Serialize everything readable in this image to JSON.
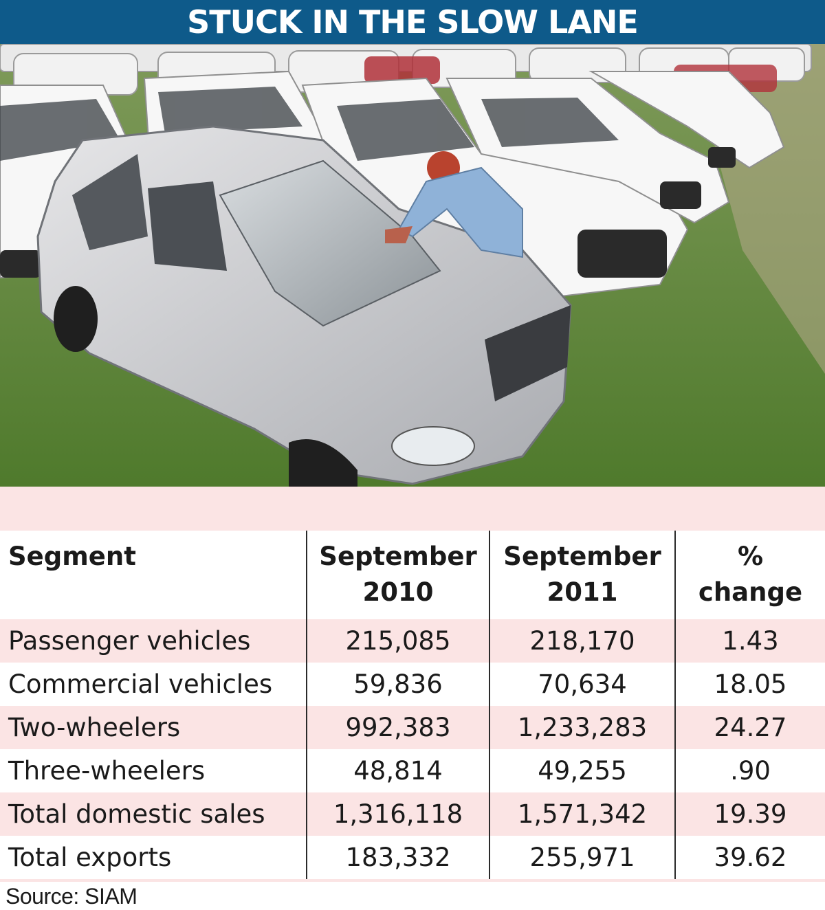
{
  "title": "STUCK IN THE SLOW LANE",
  "photo": {
    "icon": "parked-cars-photo"
  },
  "table": {
    "headers": [
      {
        "line1": "Segment",
        "line2": ""
      },
      {
        "line1": "September",
        "line2": "2010"
      },
      {
        "line1": "September",
        "line2": "2011"
      },
      {
        "line1": "%",
        "line2": "change"
      }
    ],
    "rows": [
      [
        "Passenger vehicles",
        "215,085",
        "218,170",
        "1.43"
      ],
      [
        "Commercial vehicles",
        "59,836",
        "70,634",
        "18.05"
      ],
      [
        "Two-wheelers",
        "992,383",
        "1,233,283",
        "24.27"
      ],
      [
        "Three-wheelers",
        "48,814",
        "49,255",
        ".90"
      ],
      [
        "Total domestic sales",
        "1,316,118",
        "1,571,342",
        "19.39"
      ],
      [
        "Total exports",
        "183,332",
        "255,971",
        "39.62"
      ]
    ]
  },
  "source": "Source: SIAM",
  "colors": {
    "title_bg": "#0e5a8a",
    "title_text": "#ffffff",
    "row_shade": "#fbe4e4",
    "rule": "#2a2a2a"
  }
}
